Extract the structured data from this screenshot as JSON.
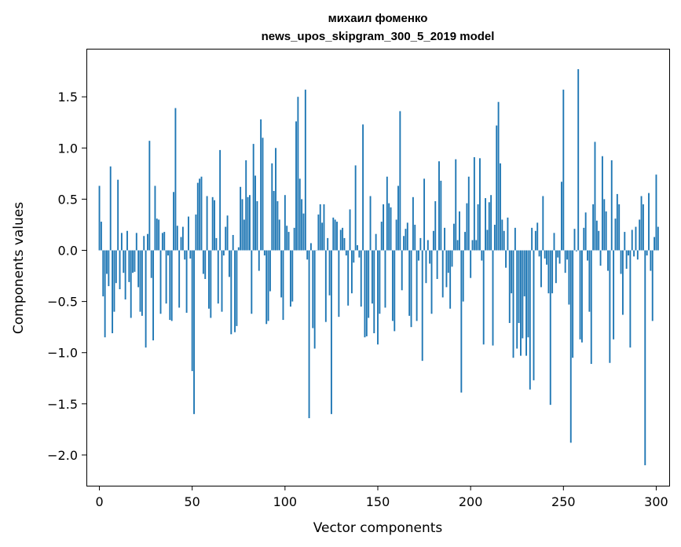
{
  "chart_data": {
    "type": "bar",
    "title": "михаил фоменко",
    "subtitle": "news_upos_skipgram_300_5_2019 model",
    "xlabel": "Vector components",
    "ylabel": "Components values",
    "xlim": [
      -7,
      307
    ],
    "ylim": [
      -2.3,
      1.97
    ],
    "xticks": [
      0,
      50,
      100,
      150,
      200,
      250,
      300
    ],
    "xtick_labels": [
      "0",
      "50",
      "100",
      "150",
      "200",
      "250",
      "300"
    ],
    "yticks": [
      -2.0,
      -1.5,
      -1.0,
      -0.5,
      0.0,
      0.5,
      1.0,
      1.5
    ],
    "ytick_labels": [
      "−2.0",
      "−1.5",
      "−1.0",
      "−0.5",
      "0.0",
      "0.5",
      "1.0",
      "1.5"
    ],
    "bar_color": "#1f77b4",
    "grid": false,
    "values": [
      0.63,
      0.28,
      -0.45,
      -0.85,
      -0.23,
      -0.35,
      0.82,
      -0.81,
      -0.6,
      -0.32,
      0.69,
      -0.38,
      0.17,
      -0.22,
      -0.48,
      0.19,
      -0.31,
      -0.66,
      -0.22,
      -0.21,
      0.17,
      -0.36,
      -0.6,
      -0.64,
      0.14,
      -0.95,
      0.16,
      1.07,
      -0.27,
      -0.88,
      0.63,
      0.31,
      0.3,
      -0.62,
      0.17,
      0.18,
      -0.52,
      -0.05,
      -0.68,
      -0.69,
      0.57,
      1.39,
      0.24,
      -0.56,
      0.13,
      0.23,
      -0.09,
      -0.61,
      0.33,
      -0.08,
      -1.18,
      -1.6,
      0.35,
      0.66,
      0.7,
      0.72,
      -0.23,
      -0.28,
      0.53,
      -0.57,
      -0.66,
      0.52,
      0.49,
      0.12,
      -0.52,
      0.98,
      -0.6,
      -0.05,
      0.23,
      0.34,
      -0.26,
      -0.82,
      0.15,
      -0.8,
      -0.74,
      0.03,
      0.62,
      0.5,
      0.3,
      0.88,
      0.52,
      0.54,
      -0.62,
      1.04,
      0.73,
      0.48,
      -0.2,
      1.28,
      1.1,
      -0.05,
      -0.72,
      -0.69,
      -0.4,
      0.85,
      0.58,
      1.0,
      0.48,
      0.3,
      -0.46,
      -0.68,
      0.54,
      0.24,
      0.18,
      -0.55,
      -0.5,
      0.22,
      1.26,
      1.5,
      0.7,
      0.5,
      0.36,
      1.57,
      -0.09,
      -1.64,
      0.07,
      -0.76,
      -0.96,
      0.0,
      0.35,
      0.45,
      0.27,
      0.45,
      -0.7,
      0.12,
      -0.44,
      -1.6,
      0.32,
      0.3,
      0.28,
      -0.65,
      0.2,
      0.22,
      0.12,
      -0.05,
      -0.54,
      0.4,
      -0.42,
      -0.12,
      0.83,
      0.05,
      -0.07,
      -0.55,
      1.23,
      -0.85,
      -0.84,
      -0.66,
      0.53,
      -0.52,
      -0.81,
      0.16,
      -0.92,
      -0.62,
      0.28,
      0.45,
      -0.56,
      0.72,
      0.46,
      0.42,
      -0.69,
      -0.79,
      0.3,
      0.63,
      1.36,
      -0.39,
      0.14,
      0.21,
      0.27,
      -0.64,
      -0.75,
      0.52,
      0.25,
      -0.69,
      -0.1,
      0.12,
      -1.08,
      0.7,
      -0.32,
      0.1,
      -0.13,
      -0.62,
      0.19,
      0.48,
      -0.28,
      0.87,
      0.68,
      -0.46,
      0.22,
      -0.36,
      -0.22,
      -0.57,
      -0.16,
      0.26,
      0.89,
      0.1,
      0.38,
      -1.39,
      -0.5,
      0.18,
      0.46,
      0.72,
      -0.27,
      0.1,
      0.91,
      0.1,
      0.45,
      0.9,
      -0.1,
      -0.92,
      0.51,
      0.2,
      0.47,
      0.54,
      -0.93,
      0.25,
      1.22,
      1.45,
      0.85,
      0.3,
      0.19,
      -0.17,
      0.32,
      -0.71,
      -0.42,
      -1.05,
      0.22,
      -0.96,
      -0.71,
      -1.03,
      -0.86,
      -0.45,
      -1.03,
      -0.85,
      -1.36,
      0.22,
      -1.27,
      0.19,
      0.27,
      -0.06,
      -0.36,
      0.53,
      -0.08,
      -0.14,
      -0.42,
      -1.51,
      -0.42,
      0.17,
      -0.32,
      -0.07,
      -0.13,
      0.67,
      1.57,
      -0.22,
      -0.09,
      -0.53,
      -1.88,
      -1.05,
      0.21,
      -0.01,
      1.77,
      -0.87,
      -0.9,
      0.22,
      0.37,
      -0.1,
      -0.6,
      -1.11,
      0.45,
      1.06,
      0.29,
      0.19,
      -0.15,
      0.92,
      0.5,
      0.38,
      -0.2,
      -1.1,
      0.88,
      -0.87,
      0.31,
      0.55,
      0.45,
      -0.23,
      -0.63,
      0.18,
      -0.18,
      -0.05,
      -0.95,
      0.2,
      -0.06,
      0.23,
      -0.09,
      0.3,
      0.53,
      0.45,
      -2.1,
      -0.05,
      0.56,
      -0.2,
      -0.69,
      0.13,
      0.74,
      0.23
    ]
  }
}
